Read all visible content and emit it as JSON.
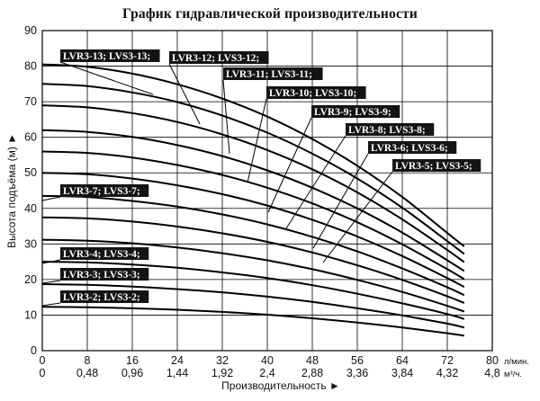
{
  "chart_data": {
    "type": "line",
    "title": "График гидравлической производительности",
    "xlabel": "Производительность ►",
    "ylabel": "Высота подъёма (м) ►",
    "x_unit_top": "л/мин.",
    "x_unit_bottom": "м³/ч.",
    "xlim": [
      0,
      80
    ],
    "ylim": [
      0,
      90
    ],
    "x_ticks_top": [
      "0",
      "8",
      "16",
      "24",
      "32",
      "40",
      "48",
      "56",
      "64",
      "72",
      "80"
    ],
    "x_ticks_bottom": [
      "0",
      "0,48",
      "0,96",
      "1,44",
      "1,92",
      "2,4",
      "2,88",
      "3,36",
      "3,84",
      "4,32",
      "4,8"
    ],
    "y_ticks": [
      "0",
      "10",
      "20",
      "30",
      "40",
      "50",
      "60",
      "70",
      "80",
      "90"
    ],
    "grid": true,
    "x": [
      0,
      8,
      16,
      24,
      32,
      40,
      48,
      56,
      64,
      72,
      75
    ],
    "series": [
      {
        "name": "LVR3-2; LVS3-2;",
        "values": [
          12.3,
          12.2,
          11.9,
          11.5,
          10.9,
          10.1,
          9.1,
          7.9,
          6.5,
          4.9,
          4.2
        ]
      },
      {
        "name": "LVR3-3; LVS3-3;",
        "values": [
          18.7,
          18.5,
          18.0,
          17.3,
          16.4,
          15.2,
          13.7,
          11.9,
          9.9,
          7.6,
          6.5
        ]
      },
      {
        "name": "LVR3-4; LVS3-4;",
        "values": [
          25.0,
          24.8,
          24.2,
          23.3,
          22.0,
          20.4,
          18.4,
          16.0,
          13.3,
          10.3,
          8.9
        ]
      },
      {
        "name": "LVR3-5; LVS3-5;",
        "values": [
          31.2,
          30.9,
          30.2,
          29.0,
          27.4,
          25.4,
          22.9,
          19.9,
          16.5,
          12.6,
          11.0
        ]
      },
      {
        "name": "LVR3-6; LVS3-6;",
        "values": [
          37.5,
          37.2,
          36.3,
          34.9,
          33.0,
          30.6,
          27.6,
          24.0,
          19.9,
          15.3,
          13.4
        ]
      },
      {
        "name": "LVR3-7; LVS3-7;",
        "values": [
          43.5,
          43.2,
          42.1,
          40.5,
          38.3,
          35.5,
          32.0,
          27.9,
          23.1,
          17.8,
          15.6
        ]
      },
      {
        "name": "LVR3-8; LVS3-8;",
        "values": [
          50.0,
          49.6,
          48.4,
          46.5,
          44.0,
          40.8,
          36.8,
          32.1,
          26.6,
          20.4,
          17.9
        ]
      },
      {
        "name": "LVR3-9; LVS3-9;",
        "values": [
          56.0,
          55.6,
          54.3,
          52.2,
          49.4,
          45.8,
          41.4,
          36.1,
          29.9,
          22.9,
          20.1
        ]
      },
      {
        "name": "LVR3-10; LVS3-10;",
        "values": [
          62.0,
          61.5,
          60.1,
          57.8,
          54.7,
          50.7,
          45.8,
          40.0,
          33.2,
          25.4,
          22.4
        ]
      },
      {
        "name": "LVR3-11; LVS3-11;",
        "values": [
          69.0,
          68.4,
          66.8,
          64.3,
          60.8,
          56.4,
          51.0,
          44.5,
          36.9,
          28.3,
          24.9
        ]
      },
      {
        "name": "LVR3-12; LVS3-12;",
        "values": [
          75.0,
          74.4,
          72.6,
          69.9,
          66.1,
          61.3,
          55.4,
          48.4,
          40.2,
          30.8,
          27.2
        ]
      },
      {
        "name": "LVR3-13; LVS3-13;",
        "values": [
          80.5,
          79.8,
          77.9,
          74.9,
          70.9,
          65.8,
          59.5,
          52.0,
          43.2,
          33.1,
          29.3
        ]
      }
    ],
    "labels": [
      {
        "series": 11,
        "text": "LVR3-13; LVS3-13;"
      },
      {
        "series": 10,
        "text": "LVR3-12; LVS3-12;"
      },
      {
        "series": 9,
        "text": "LVR3-11; LVS3-11;"
      },
      {
        "series": 8,
        "text": "LVR3-10; LVS3-10;"
      },
      {
        "series": 7,
        "text": "LVR3-9; LVS3-9;"
      },
      {
        "series": 6,
        "text": "LVR3-8; LVS3-8;"
      },
      {
        "series": 4,
        "text": "LVR3-6; LVS3-6;"
      },
      {
        "series": 3,
        "text": "LVR3-5; LVS3-5;"
      },
      {
        "series": 5,
        "text": "LVR3-7; LVS3-7;"
      },
      {
        "series": 2,
        "text": "LVR3-4; LVS3-4;"
      },
      {
        "series": 1,
        "text": "LVR3-3; LVS3-3;"
      },
      {
        "series": 0,
        "text": "LVR3-2; LVS3-2;"
      }
    ]
  }
}
